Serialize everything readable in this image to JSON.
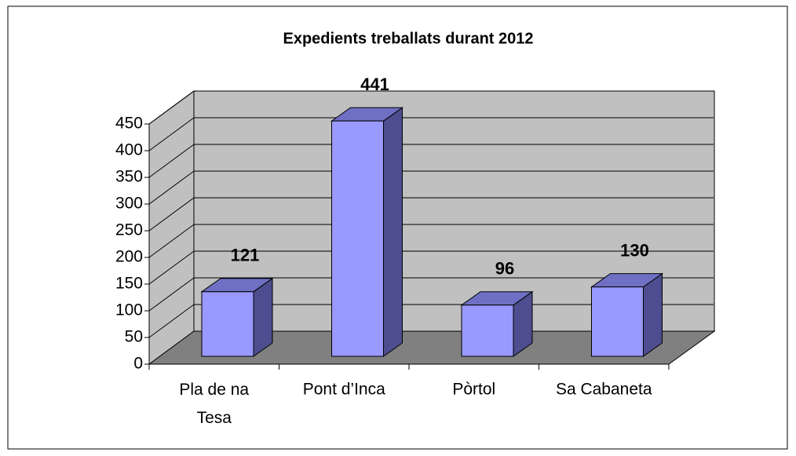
{
  "chart_data": {
    "type": "bar3d",
    "title": "Expedients treballats durant 2012",
    "categories": [
      "Pla de na Tesa",
      "Pont d’Inca",
      "Pòrtol",
      "Sa Cabaneta"
    ],
    "values": [
      121,
      441,
      96,
      130
    ],
    "color": "#9999ff",
    "ylim": [
      0,
      450
    ],
    "yticks": [
      0,
      50,
      100,
      150,
      200,
      250,
      300,
      350,
      400,
      450
    ],
    "grid": true
  }
}
